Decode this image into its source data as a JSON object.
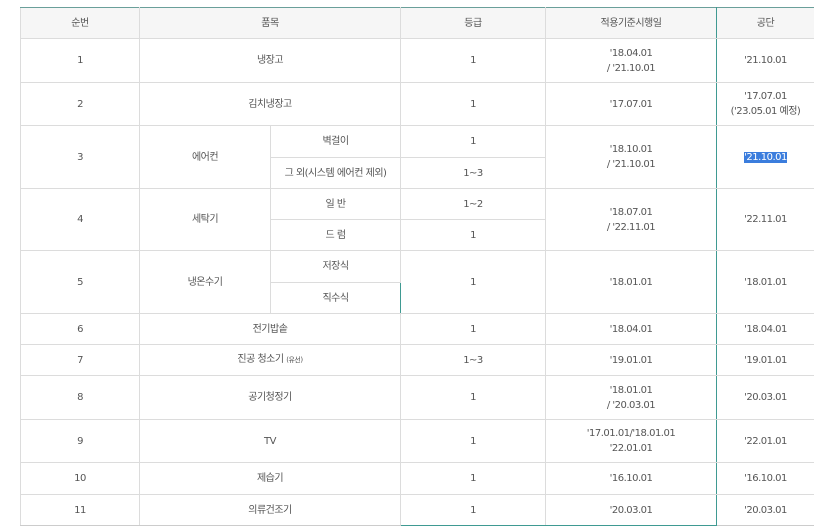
{
  "headers": [
    "순번",
    "품목",
    "등급",
    "적용기준시행일",
    "공단"
  ],
  "rows": [
    {
      "no": "1",
      "item": "냉장고",
      "grade": "1",
      "date1": "'18.04.01",
      "date2": "/ '21.10.01",
      "agency": "'21.10.01"
    },
    {
      "no": "2",
      "item": "김치냉장고",
      "grade": "1",
      "date1": "'17.07.01",
      "agency": "'17.07.01",
      "agency2": "('23.05.01 예정)"
    },
    {
      "no": "3",
      "item": "에어컨",
      "subs": [
        {
          "name": "벽걸이",
          "grade": "1"
        },
        {
          "name": "그 외(시스템 에어컨 제외)",
          "grade": "1~3"
        }
      ],
      "date1": "'18.10.01",
      "date2": "/ '21.10.01",
      "agency": "'21.10.01"
    },
    {
      "no": "4",
      "item": "세탁기",
      "subs": [
        {
          "name": "일 반",
          "grade": "1~2"
        },
        {
          "name": "드 럼",
          "grade": "1"
        }
      ],
      "date1": "'18.07.01",
      "date2": "/ '22.11.01",
      "agency": "'22.11.01"
    },
    {
      "no": "5",
      "item": "냉온수기",
      "subs": [
        {
          "name": "저장식"
        },
        {
          "name": "직수식"
        }
      ],
      "grade": "1",
      "date1": "'18.01.01",
      "agency": "'18.01.01"
    },
    {
      "no": "6",
      "item": "전기밥솥",
      "grade": "1",
      "date1": "'18.04.01",
      "agency": "'18.04.01"
    },
    {
      "no": "7",
      "item": "진공 청소기",
      "item_note": "(유선)",
      "grade": "1~3",
      "date1": "'19.01.01",
      "agency": "'19.01.01"
    },
    {
      "no": "8",
      "item": "공기청정기",
      "grade": "1",
      "date1": "'18.01.01",
      "date2": "/ '20.03.01",
      "agency": "'20.03.01"
    },
    {
      "no": "9",
      "item": "TV",
      "grade": "1",
      "date1": "'17.01.01/'18.01.01",
      "date2": "'22.01.01",
      "agency": "'22.01.01"
    },
    {
      "no": "10",
      "item": "제습기",
      "grade": "1",
      "date1": "'16.10.01",
      "agency": "'16.10.01"
    },
    {
      "no": "11",
      "item": "의류건조기",
      "grade": "1",
      "date1": "'20.03.01",
      "agency": "'20.03.01"
    }
  ],
  "selection": {
    "highlight_color": "#3b7ddd",
    "accent_border": "#3f9a92"
  }
}
